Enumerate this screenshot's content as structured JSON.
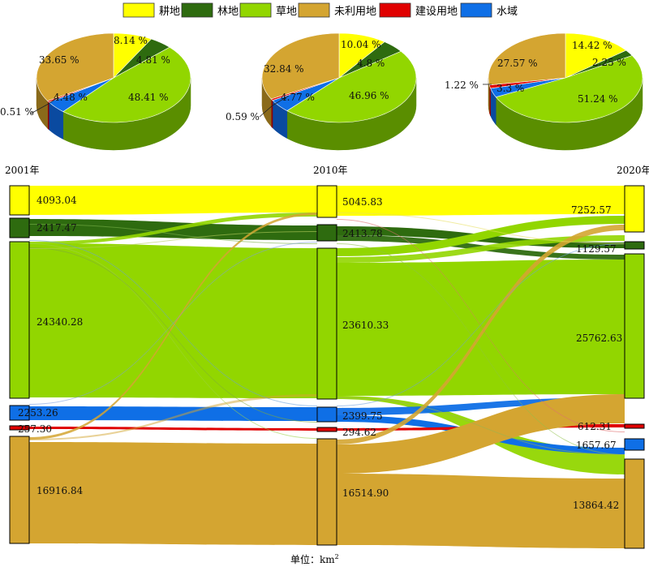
{
  "legend": [
    {
      "key": "crop",
      "label": "耕地",
      "color": "#ffff00"
    },
    {
      "key": "forest",
      "label": "林地",
      "color": "#2e6b0f"
    },
    {
      "key": "grass",
      "label": "草地",
      "color": "#92d600"
    },
    {
      "key": "unused",
      "label": "未利用地",
      "color": "#d4a531"
    },
    {
      "key": "built",
      "label": "建设用地",
      "color": "#e00000"
    },
    {
      "key": "water",
      "label": "水域",
      "color": "#0f6fe6"
    }
  ],
  "years": [
    "2001年",
    "2010年",
    "2020年"
  ],
  "unit": "单位：km",
  "unit_sup": "2",
  "pies": [
    {
      "year": "2001年",
      "slices": {
        "crop": 8.14,
        "forest": 4.81,
        "grass": 48.41,
        "water": 4.48,
        "built": 0.51,
        "unused": 33.65
      },
      "labels": {
        "crop": "8.14 %",
        "forest": "4.81 %",
        "grass": "48.41 %",
        "water": "4.48 %",
        "built": "0.51 %",
        "unused": "33.65 %"
      }
    },
    {
      "year": "2010年",
      "slices": {
        "crop": 10.04,
        "forest": 4.8,
        "grass": 46.96,
        "water": 4.77,
        "built": 0.59,
        "unused": 32.84
      },
      "labels": {
        "crop": "10.04 %",
        "forest": "4.8 %",
        "grass": "46.96 %",
        "water": "4.77 %",
        "built": "0.59 %",
        "unused": "32.84 %"
      }
    },
    {
      "year": "2020年",
      "slices": {
        "crop": 14.42,
        "forest": 2.25,
        "grass": 51.24,
        "water": 3.3,
        "built": 1.22,
        "unused": 27.57
      },
      "labels": {
        "crop": "14.42 %",
        "forest": "2.25 %",
        "grass": "51.24 %",
        "water": "3.3 %",
        "built": "1.22 %",
        "unused": "27.57 %"
      }
    }
  ],
  "nodes": [
    {
      "crop": "4093.04",
      "forest": "2417.47",
      "grass": "24340.28",
      "water": "2253.26",
      "built": "257.30",
      "unused": "16916.84"
    },
    {
      "crop": "5045.83",
      "forest": "2413.78",
      "grass": "23610.33",
      "water": "2399.75",
      "built": "294.62",
      "unused": "16514.90"
    },
    {
      "crop": "7252.57",
      "forest": "1129.57",
      "grass": "25762.63",
      "water": "1657.67",
      "built": "612.31",
      "unused": "13864.42"
    }
  ]
}
